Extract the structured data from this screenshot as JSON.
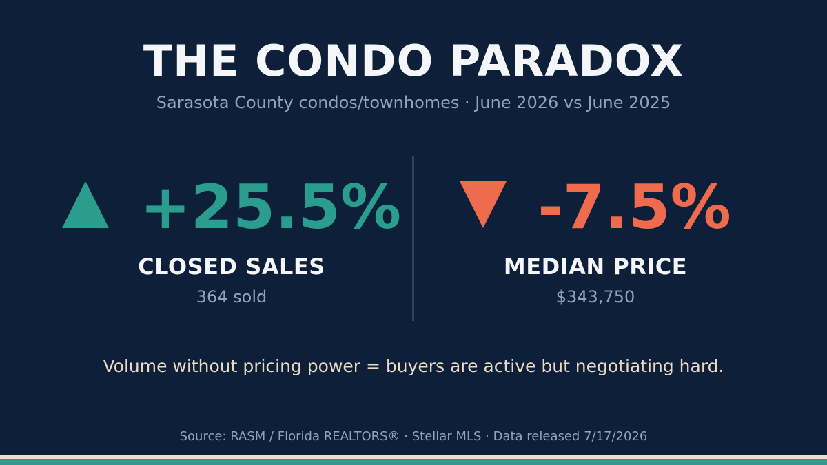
{
  "title": "THE CONDO PARADOX",
  "subtitle": "Sarasota County condos/townhomes · June 2026 vs June 2025",
  "stats": [
    {
      "direction": "up",
      "icon": "triangle-up-icon",
      "color": "#2a9d8f",
      "value": "+25.5%",
      "label": "CLOSED SALES",
      "detail": "364 sold"
    },
    {
      "direction": "down",
      "icon": "triangle-down-icon",
      "color": "#ee6c4d",
      "value": "-7.5%",
      "label": "MEDIAN PRICE",
      "detail": "$343,750"
    }
  ],
  "tagline": "Volume without pricing power = buyers are active but negotiating hard.",
  "source": "Source: RASM / Florida REALTORS® · Stellar MLS · Data released 7/17/2026",
  "colors": {
    "background": "#0e2039",
    "accent_up": "#2a9d8f",
    "accent_down": "#ee6c4d",
    "tagline": "#ead9c4",
    "muted": "#8ea3bd"
  }
}
